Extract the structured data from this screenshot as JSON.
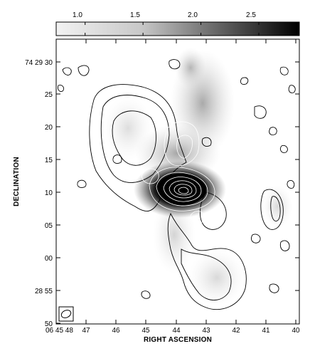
{
  "colorbar": {
    "colors": [
      "#f2f2f2",
      "#000000"
    ],
    "tick_labels": [
      "1.0",
      "1.5",
      "2.0",
      "2.5"
    ],
    "ticks": [
      1.0,
      1.5,
      2.0,
      2.5
    ],
    "range": [
      0.75,
      2.85
    ]
  },
  "xaxis": {
    "title": "RIGHT ASCENSION",
    "tick_labels": [
      "06 45 48",
      "47",
      "46",
      "45",
      "44",
      "43",
      "42",
      "41",
      "40"
    ]
  },
  "yaxis": {
    "title": "DECLINATION",
    "tick_labels": [
      "74 29 30",
      "25",
      "20",
      "15",
      "10",
      "05",
      "00",
      "28 55",
      "50"
    ]
  },
  "image": {
    "greyscale": "radio emission",
    "contours_outer_color": "#000000",
    "contours_inner_color": "#ffffff",
    "beam_symbol": "beam-ellipse"
  }
}
